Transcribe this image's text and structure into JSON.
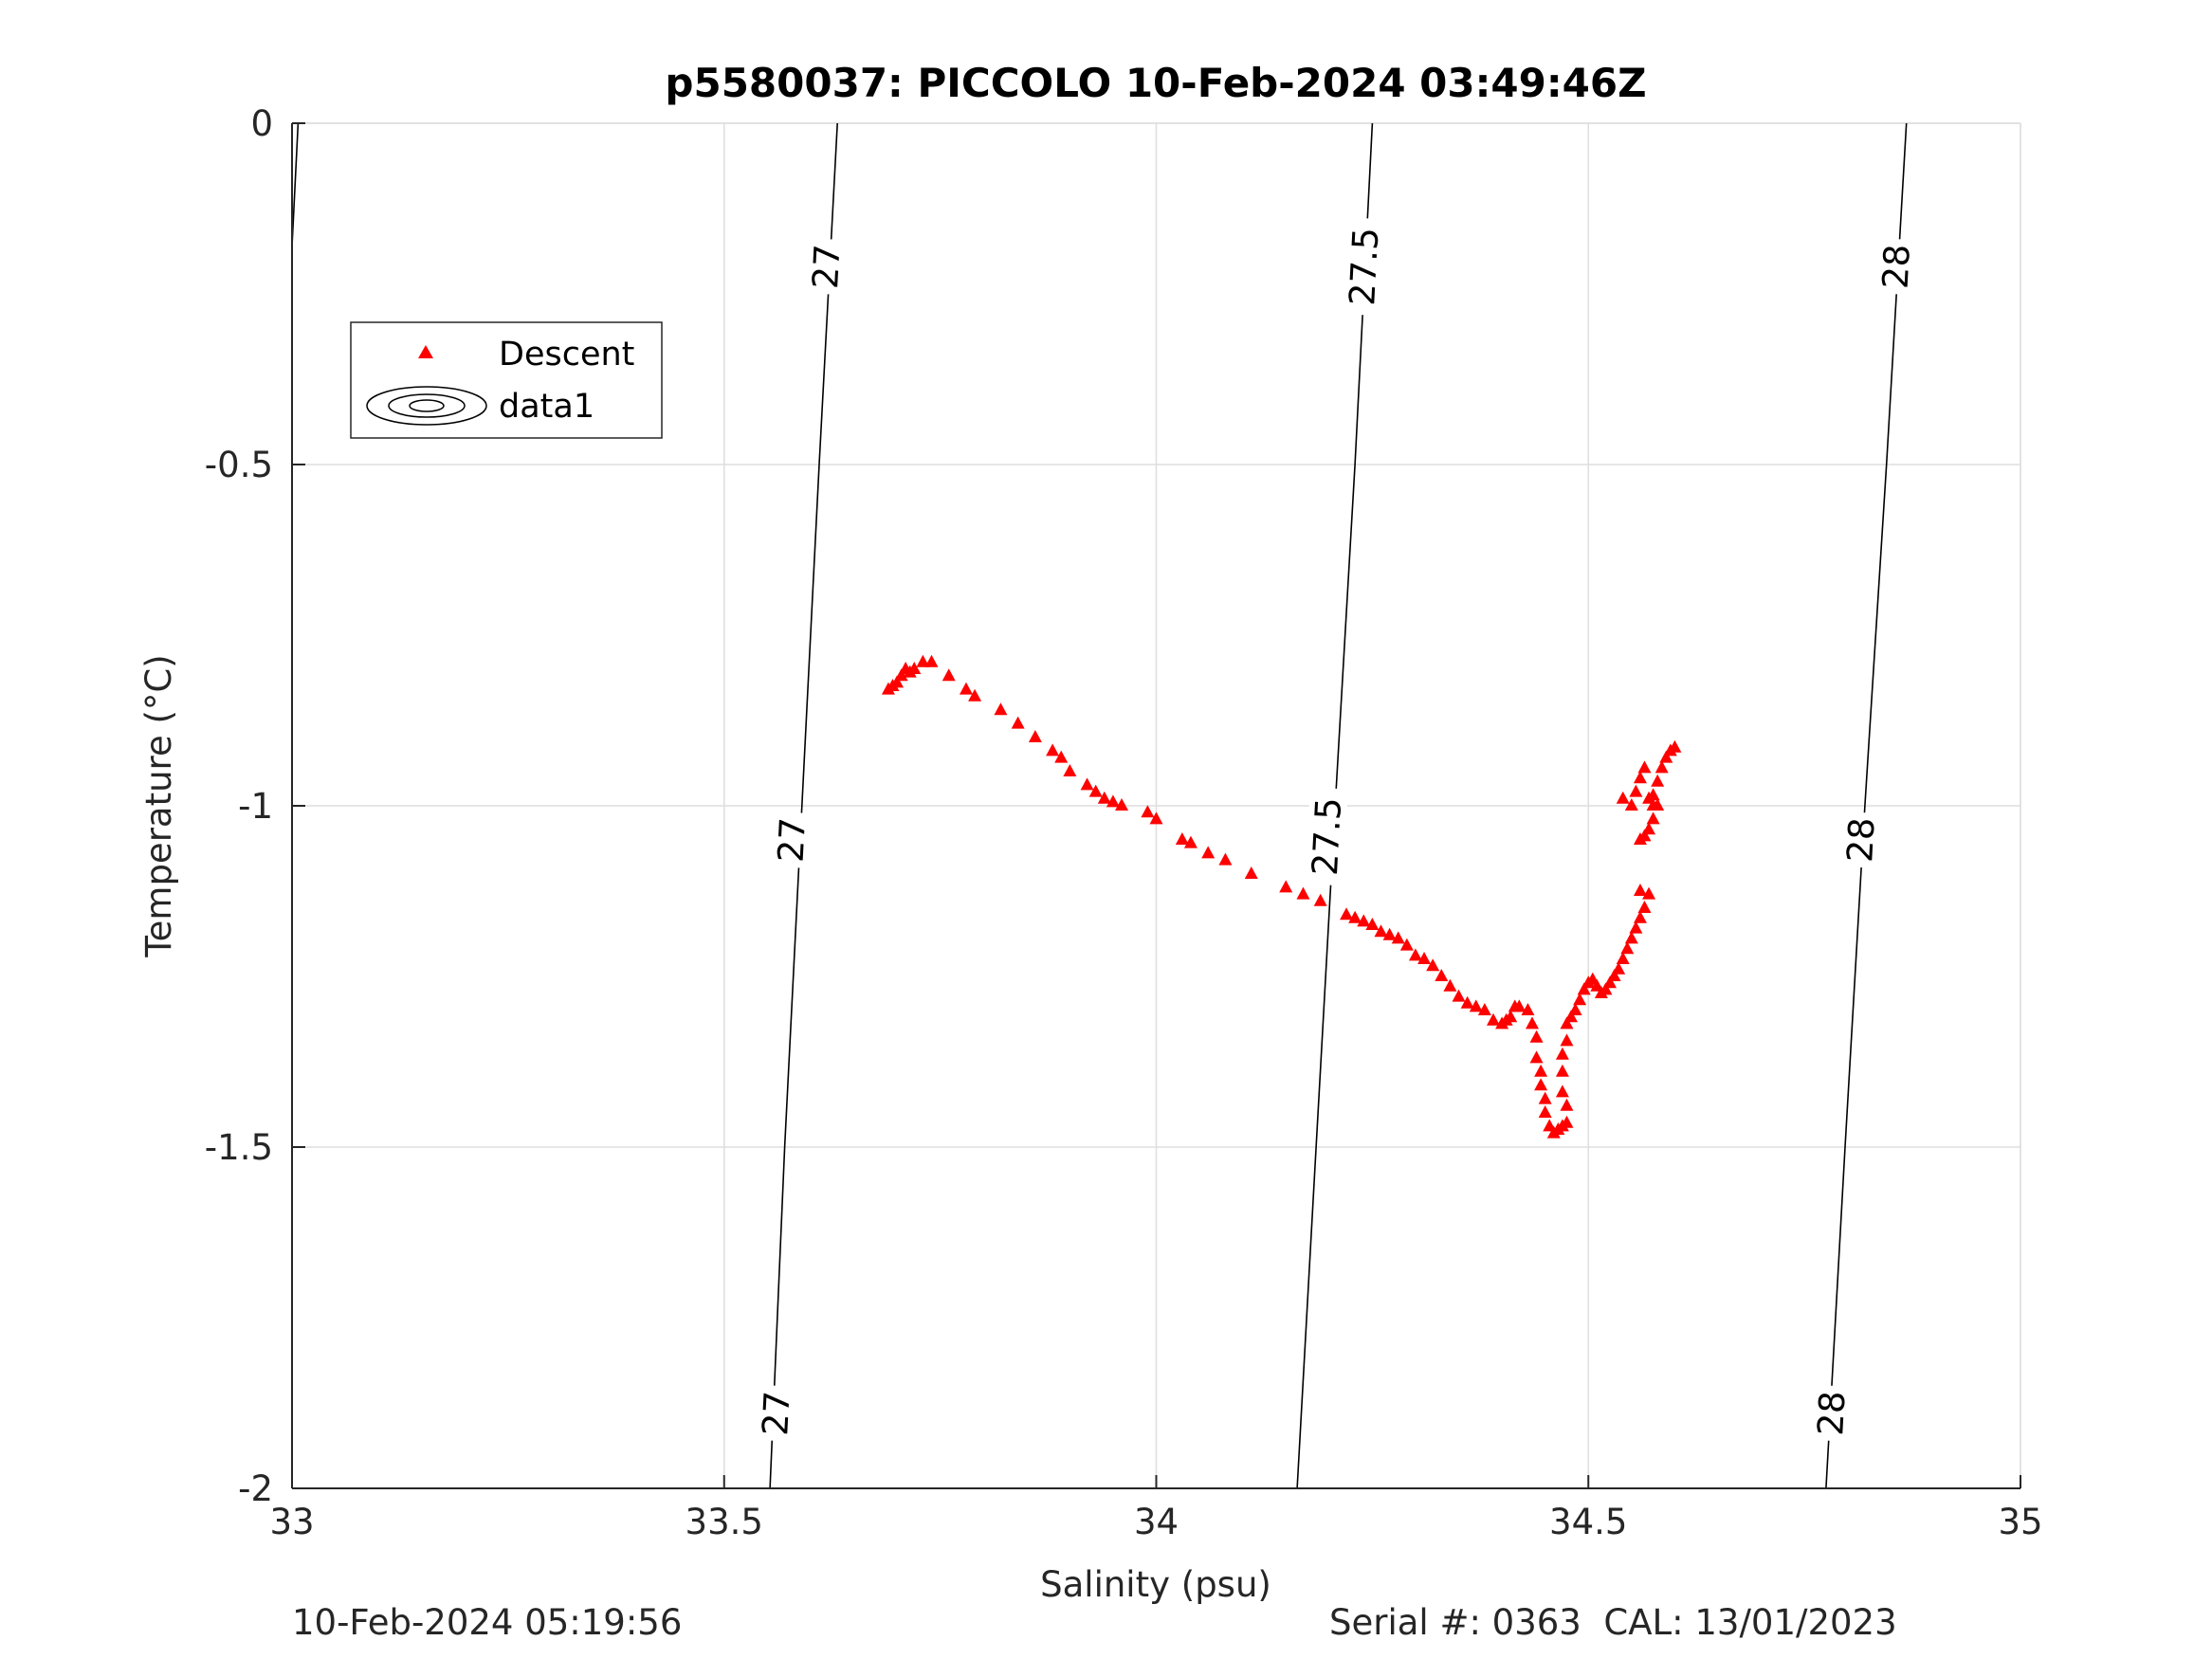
{
  "chart_data": {
    "type": "scatter",
    "title": "p5580037: PICCOLO 10-Feb-2024 03:49:46Z",
    "xlabel": "Salinity (psu)",
    "ylabel": "Temperature (°C)",
    "xlim": [
      33,
      35
    ],
    "ylim": [
      -2,
      0
    ],
    "xticks": [
      "33",
      "33.5",
      "34",
      "34.5",
      "35"
    ],
    "yticks": [
      "-2",
      "-1.5",
      "-1",
      "-0.5",
      "0"
    ],
    "grid": true,
    "legend": {
      "position": "top-left",
      "entries": [
        "Descent",
        "data1"
      ]
    },
    "marker_color": "#ff0000",
    "series": [
      {
        "name": "Descent",
        "marker": "triangle",
        "points": [
          [
            33.69,
            -0.83
          ],
          [
            33.695,
            -0.825
          ],
          [
            33.7,
            -0.82
          ],
          [
            33.705,
            -0.81
          ],
          [
            33.71,
            -0.8
          ],
          [
            33.715,
            -0.805
          ],
          [
            33.72,
            -0.8
          ],
          [
            33.73,
            -0.79
          ],
          [
            33.74,
            -0.79
          ],
          [
            33.76,
            -0.81
          ],
          [
            33.78,
            -0.83
          ],
          [
            33.79,
            -0.84
          ],
          [
            33.82,
            -0.86
          ],
          [
            33.84,
            -0.88
          ],
          [
            33.86,
            -0.9
          ],
          [
            33.88,
            -0.92
          ],
          [
            33.89,
            -0.93
          ],
          [
            33.9,
            -0.95
          ],
          [
            33.92,
            -0.97
          ],
          [
            33.93,
            -0.98
          ],
          [
            33.94,
            -0.99
          ],
          [
            33.95,
            -0.995
          ],
          [
            33.96,
            -1.0
          ],
          [
            33.99,
            -1.01
          ],
          [
            34.0,
            -1.02
          ],
          [
            34.03,
            -1.05
          ],
          [
            34.04,
            -1.055
          ],
          [
            34.06,
            -1.07
          ],
          [
            34.08,
            -1.08
          ],
          [
            34.11,
            -1.1
          ],
          [
            34.15,
            -1.12
          ],
          [
            34.17,
            -1.13
          ],
          [
            34.19,
            -1.14
          ],
          [
            34.22,
            -1.16
          ],
          [
            34.23,
            -1.165
          ],
          [
            34.24,
            -1.17
          ],
          [
            34.25,
            -1.175
          ],
          [
            34.26,
            -1.185
          ],
          [
            34.27,
            -1.19
          ],
          [
            34.28,
            -1.195
          ],
          [
            34.29,
            -1.205
          ],
          [
            34.3,
            -1.22
          ],
          [
            34.31,
            -1.225
          ],
          [
            34.32,
            -1.235
          ],
          [
            34.33,
            -1.25
          ],
          [
            34.34,
            -1.265
          ],
          [
            34.35,
            -1.28
          ],
          [
            34.36,
            -1.29
          ],
          [
            34.37,
            -1.295
          ],
          [
            34.38,
            -1.3
          ],
          [
            34.39,
            -1.315
          ],
          [
            34.4,
            -1.32
          ],
          [
            34.405,
            -1.315
          ],
          [
            34.41,
            -1.31
          ],
          [
            34.415,
            -1.295
          ],
          [
            34.42,
            -1.295
          ],
          [
            34.43,
            -1.3
          ],
          [
            34.435,
            -1.32
          ],
          [
            34.44,
            -1.34
          ],
          [
            34.44,
            -1.37
          ],
          [
            34.445,
            -1.39
          ],
          [
            34.445,
            -1.41
          ],
          [
            34.45,
            -1.43
          ],
          [
            34.45,
            -1.45
          ],
          [
            34.455,
            -1.47
          ],
          [
            34.46,
            -1.48
          ],
          [
            34.465,
            -1.475
          ],
          [
            34.47,
            -1.47
          ],
          [
            34.475,
            -1.465
          ],
          [
            34.475,
            -1.44
          ],
          [
            34.47,
            -1.42
          ],
          [
            34.47,
            -1.39
          ],
          [
            34.47,
            -1.365
          ],
          [
            34.475,
            -1.345
          ],
          [
            34.475,
            -1.32
          ],
          [
            34.48,
            -1.31
          ],
          [
            34.485,
            -1.3
          ],
          [
            34.49,
            -1.285
          ],
          [
            34.495,
            -1.27
          ],
          [
            34.5,
            -1.26
          ],
          [
            34.505,
            -1.255
          ],
          [
            34.51,
            -1.265
          ],
          [
            34.515,
            -1.275
          ],
          [
            34.52,
            -1.27
          ],
          [
            34.525,
            -1.26
          ],
          [
            34.53,
            -1.25
          ],
          [
            34.535,
            -1.24
          ],
          [
            34.54,
            -1.225
          ],
          [
            34.545,
            -1.21
          ],
          [
            34.55,
            -1.195
          ],
          [
            34.555,
            -1.18
          ],
          [
            34.56,
            -1.165
          ],
          [
            34.565,
            -1.15
          ],
          [
            34.56,
            -1.125
          ],
          [
            34.57,
            -1.13
          ],
          [
            34.56,
            -1.05
          ],
          [
            34.565,
            -1.045
          ],
          [
            34.57,
            -1.035
          ],
          [
            34.575,
            -1.02
          ],
          [
            34.58,
            -1.0
          ],
          [
            34.575,
            -0.985
          ],
          [
            34.58,
            -0.965
          ],
          [
            34.585,
            -0.945
          ],
          [
            34.59,
            -0.93
          ],
          [
            34.595,
            -0.92
          ],
          [
            34.6,
            -0.915
          ],
          [
            34.54,
            -0.99
          ],
          [
            34.55,
            -1.0
          ],
          [
            34.555,
            -0.98
          ],
          [
            34.56,
            -0.96
          ],
          [
            34.565,
            -0.945
          ],
          [
            34.57,
            -0.99
          ],
          [
            34.575,
            -1.0
          ]
        ]
      }
    ],
    "contours": [
      {
        "label": "27",
        "line": [
          [
            33.007,
            0
          ],
          [
            33.0,
            -0.18
          ]
        ]
      },
      {
        "label": "27",
        "line": [
          [
            33.631,
            0
          ],
          [
            33.61,
            -0.5
          ],
          [
            33.59,
            -1.0
          ],
          [
            33.57,
            -1.5
          ],
          [
            33.553,
            -2.0
          ]
        ]
      },
      {
        "label": "27.5",
        "line": [
          [
            34.25,
            0
          ],
          [
            34.23,
            -0.5
          ],
          [
            34.207,
            -1.0
          ],
          [
            34.185,
            -1.5
          ],
          [
            34.163,
            -2.0
          ]
        ]
      },
      {
        "label": "28",
        "line": [
          [
            34.868,
            0
          ],
          [
            34.845,
            -0.5
          ],
          [
            34.82,
            -1.0
          ],
          [
            34.797,
            -1.5
          ],
          [
            34.775,
            -2.0
          ]
        ]
      }
    ],
    "contour_labels": [
      {
        "text": "27",
        "at": [
          33.618,
          -0.21
        ]
      },
      {
        "text": "27",
        "at": [
          33.578,
          -1.05
        ]
      },
      {
        "text": "27",
        "at": [
          33.56,
          -1.89
        ]
      },
      {
        "text": "27.5",
        "at": [
          34.24,
          -0.21
        ]
      },
      {
        "text": "27.5",
        "at": [
          34.197,
          -1.045
        ]
      },
      {
        "text": "28",
        "at": [
          34.856,
          -0.21
        ]
      },
      {
        "text": "28",
        "at": [
          34.815,
          -1.05
        ]
      },
      {
        "text": "28",
        "at": [
          34.781,
          -1.89
        ]
      }
    ]
  },
  "footer": {
    "timestamp": "10-Feb-2024 05:19:56",
    "serial_cal": "Serial #: 0363  CAL: 13/01/2023"
  }
}
